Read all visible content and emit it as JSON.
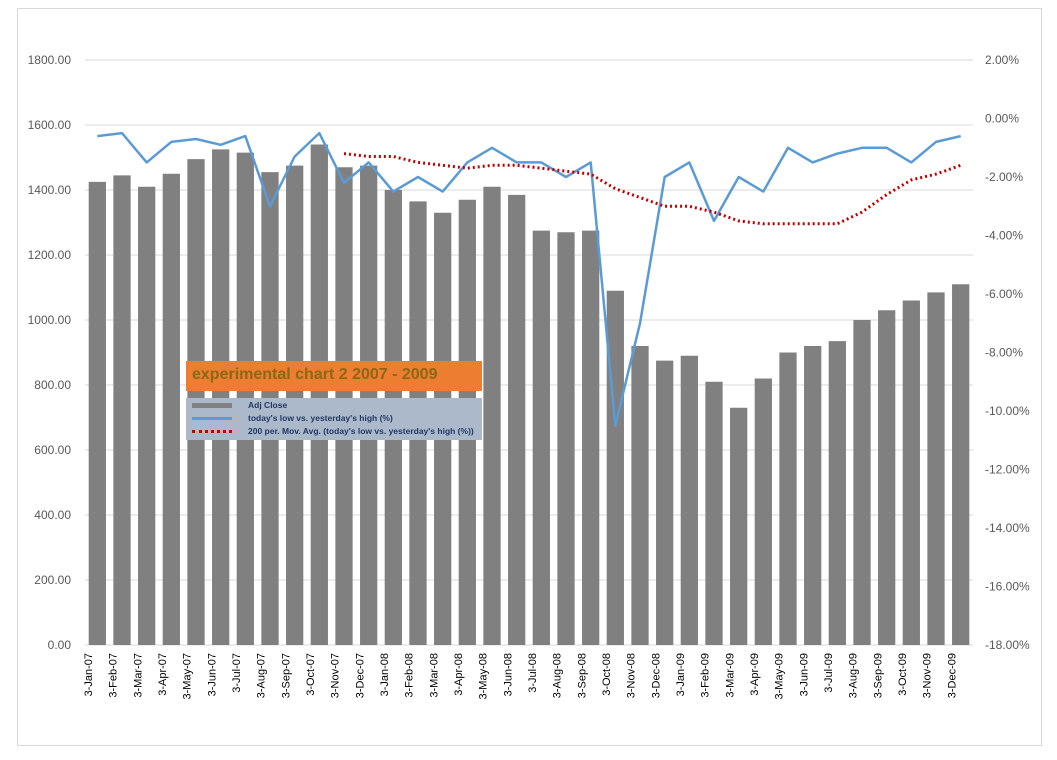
{
  "chart_data": {
    "type": "bar",
    "title": "experimental chart 2 2007 - 2009",
    "legend_placement": "center-left",
    "grid": true,
    "y_left": {
      "ylim": [
        0,
        1800
      ],
      "ticks": [
        "0.00",
        "200.00",
        "400.00",
        "600.00",
        "800.00",
        "1000.00",
        "1200.00",
        "1400.00",
        "1600.00",
        "1800.00"
      ]
    },
    "y_right": {
      "ylim": [
        -18,
        2
      ],
      "ticks": [
        "-18.00%",
        "-16.00%",
        "-14.00%",
        "-12.00%",
        "-10.00%",
        "-8.00%",
        "-6.00%",
        "-4.00%",
        "-2.00%",
        "0.00%",
        "2.00%"
      ]
    },
    "x_ticks": [
      "3-Jan-07",
      "3-Feb-07",
      "3-Mar-07",
      "3-Apr-07",
      "3-May-07",
      "3-Jun-07",
      "3-Jul-07",
      "3-Aug-07",
      "3-Sep-07",
      "3-Oct-07",
      "3-Nov-07",
      "3-Dec-07",
      "3-Jan-08",
      "3-Feb-08",
      "3-Mar-08",
      "3-Apr-08",
      "3-May-08",
      "3-Jun-08",
      "3-Jul-08",
      "3-Aug-08",
      "3-Sep-08",
      "3-Oct-08",
      "3-Nov-08",
      "3-Dec-08",
      "3-Jan-09",
      "3-Feb-09",
      "3-Mar-09",
      "3-Apr-09",
      "3-May-09",
      "3-Jun-09",
      "3-Jul-09",
      "3-Aug-09",
      "3-Sep-09",
      "3-Oct-09",
      "3-Nov-09",
      "3-Dec-09"
    ],
    "series": [
      {
        "name": "Adj Close",
        "kind": "bar",
        "axis": "left",
        "color": "#808080",
        "x": [
          "3-Jan-07",
          "3-Feb-07",
          "3-Mar-07",
          "3-Apr-07",
          "3-May-07",
          "3-Jun-07",
          "3-Jul-07",
          "3-Aug-07",
          "3-Sep-07",
          "3-Oct-07",
          "3-Nov-07",
          "3-Dec-07",
          "3-Jan-08",
          "3-Feb-08",
          "3-Mar-08",
          "3-Apr-08",
          "3-May-08",
          "3-Jun-08",
          "3-Jul-08",
          "3-Aug-08",
          "3-Sep-08",
          "3-Oct-08",
          "3-Nov-08",
          "3-Dec-08",
          "3-Jan-09",
          "3-Feb-09",
          "3-Mar-09",
          "3-Apr-09",
          "3-May-09",
          "3-Jun-09",
          "3-Jul-09",
          "3-Aug-09",
          "3-Sep-09",
          "3-Oct-09",
          "3-Nov-09",
          "3-Dec-09"
        ],
        "values": [
          1425,
          1445,
          1410,
          1450,
          1495,
          1525,
          1515,
          1455,
          1475,
          1540,
          1470,
          1475,
          1400,
          1365,
          1330,
          1370,
          1410,
          1385,
          1275,
          1270,
          1275,
          1090,
          920,
          875,
          890,
          810,
          730,
          820,
          900,
          920,
          935,
          1000,
          1030,
          1060,
          1085,
          1110
        ]
      },
      {
        "name": "today's low vs. yesterday's high (%)",
        "kind": "line",
        "axis": "right",
        "color": "#5b9bd5",
        "x": [
          "3-Jan-07",
          "3-Feb-07",
          "3-Mar-07",
          "3-Apr-07",
          "3-May-07",
          "3-Jun-07",
          "3-Jul-07",
          "3-Aug-07",
          "3-Sep-07",
          "3-Oct-07",
          "3-Nov-07",
          "3-Dec-07",
          "3-Jan-08",
          "3-Feb-08",
          "3-Mar-08",
          "3-Apr-08",
          "3-May-08",
          "3-Jun-08",
          "3-Jul-08",
          "3-Aug-08",
          "3-Sep-08",
          "3-Oct-08",
          "3-Nov-08",
          "3-Dec-08",
          "3-Jan-09",
          "3-Feb-09",
          "3-Mar-09",
          "3-Apr-09",
          "3-May-09",
          "3-Jun-09",
          "3-Jul-09",
          "3-Aug-09",
          "3-Sep-09",
          "3-Oct-09",
          "3-Nov-09",
          "3-Dec-09"
        ],
        "values": [
          -0.6,
          -0.5,
          -1.5,
          -0.8,
          -0.7,
          -0.9,
          -0.6,
          -3.0,
          -1.3,
          -0.5,
          -2.2,
          -1.5,
          -2.5,
          -2.0,
          -2.5,
          -1.5,
          -1.0,
          -1.5,
          -1.5,
          -2.0,
          -1.5,
          -10.5,
          -7.0,
          -2.0,
          -1.5,
          -3.5,
          -2.0,
          -2.5,
          -1.0,
          -1.5,
          -1.2,
          -1.0,
          -1.0,
          -1.5,
          -0.8,
          -0.6
        ]
      },
      {
        "name": "200 per. Mov. Avg. (today's low vs. yesterday's high (%))",
        "kind": "line-dotted",
        "axis": "right",
        "color": "#c00000",
        "x": [
          "3-Nov-07",
          "3-Dec-07",
          "3-Jan-08",
          "3-Feb-08",
          "3-Mar-08",
          "3-Apr-08",
          "3-May-08",
          "3-Jun-08",
          "3-Jul-08",
          "3-Aug-08",
          "3-Sep-08",
          "3-Oct-08",
          "3-Nov-08",
          "3-Dec-08",
          "3-Jan-09",
          "3-Feb-09",
          "3-Mar-09",
          "3-Apr-09",
          "3-May-09",
          "3-Jun-09",
          "3-Jul-09",
          "3-Aug-09",
          "3-Sep-09",
          "3-Oct-09",
          "3-Nov-09",
          "3-Dec-09"
        ],
        "values": [
          -1.2,
          -1.3,
          -1.3,
          -1.5,
          -1.6,
          -1.7,
          -1.6,
          -1.6,
          -1.7,
          -1.8,
          -1.9,
          -2.4,
          -2.7,
          -3.0,
          -3.0,
          -3.2,
          -3.5,
          -3.6,
          -3.6,
          -3.6,
          -3.6,
          -3.2,
          -2.6,
          -2.1,
          -1.9,
          -1.6
        ]
      }
    ]
  }
}
